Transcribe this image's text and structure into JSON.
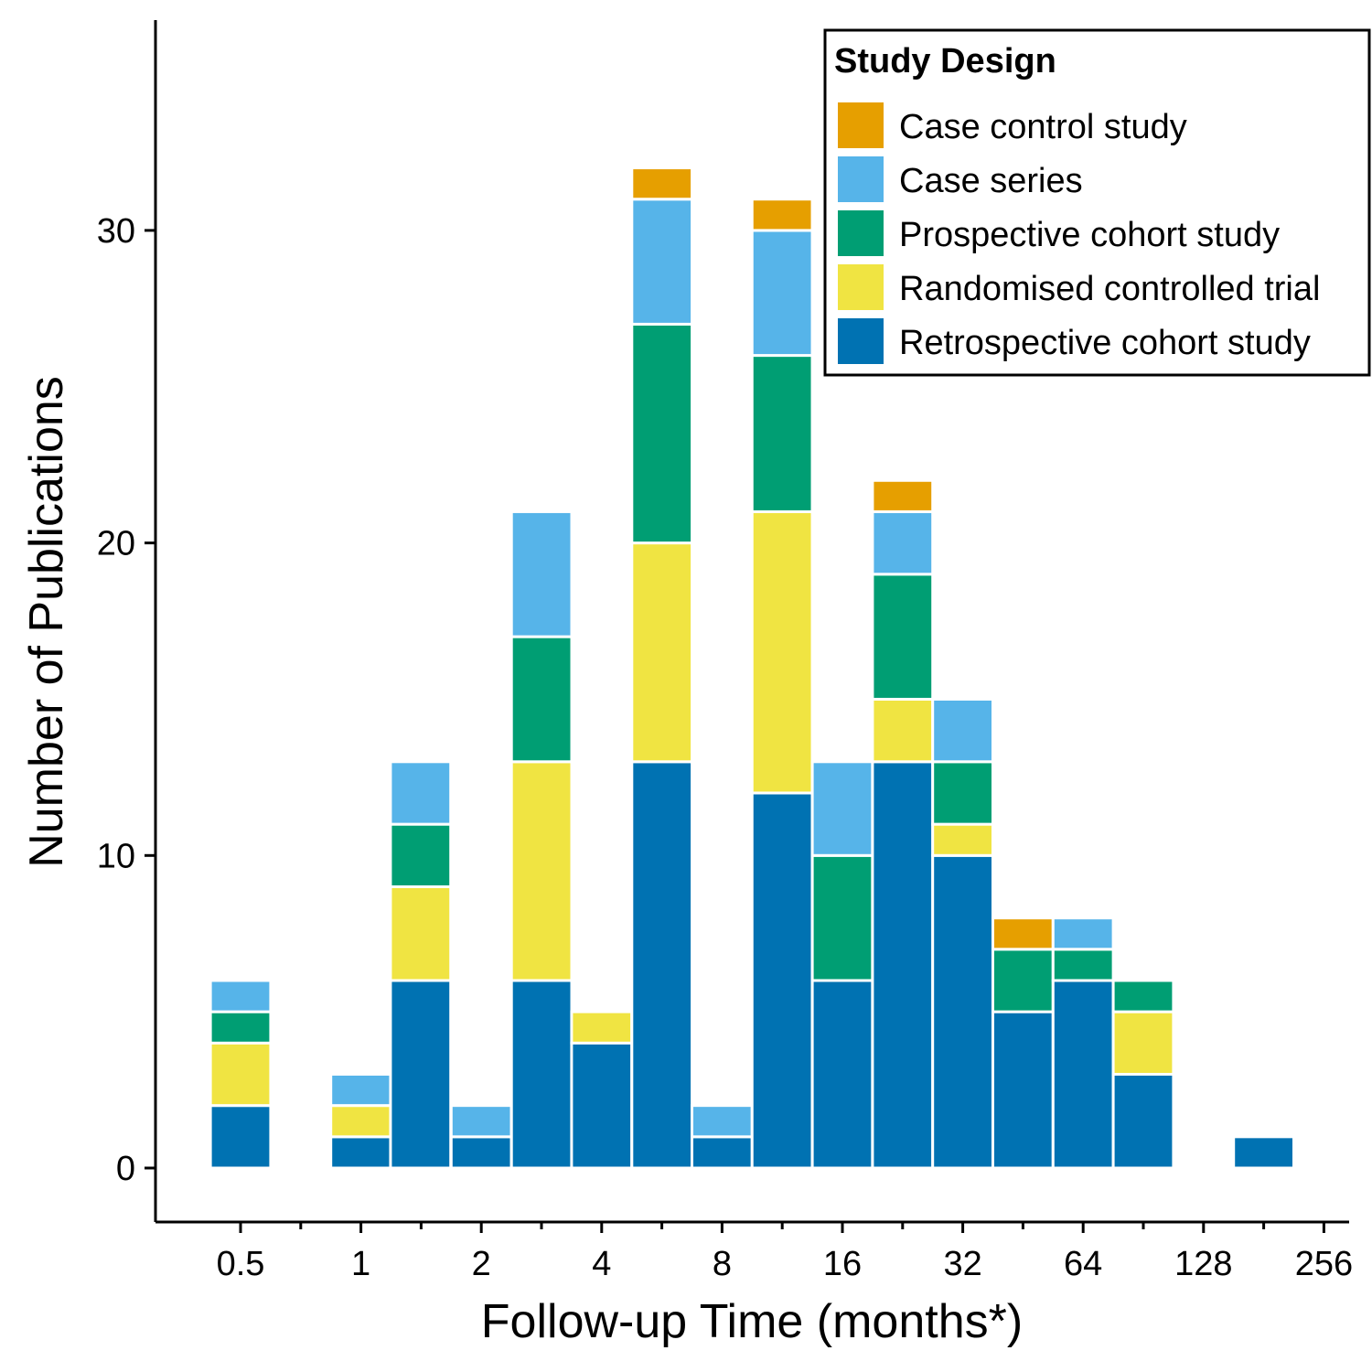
{
  "chart_data": {
    "type": "bar",
    "stacked": true,
    "x_scale": "log2",
    "xlabel": "Follow-up Time (months*)",
    "ylabel": "Number of Publications",
    "x_ticks": [
      "0.5",
      "1",
      "2",
      "4",
      "8",
      "16",
      "32",
      "64",
      "128",
      "256"
    ],
    "y_ticks": [
      "0",
      "10",
      "20",
      "30"
    ],
    "ylim": [
      -1.7,
      36.9
    ],
    "grid": false,
    "legend": {
      "title": "Study Design",
      "position": "top-right"
    },
    "bin_width_log2": 0.5,
    "bin_centers": [
      0.5,
      0.71,
      1,
      1.41,
      2,
      2.83,
      4,
      5.66,
      8,
      11.31,
      16,
      22.63,
      32,
      45.25,
      64,
      90.51,
      128,
      181.02
    ],
    "series": [
      {
        "name": "Retrospective cohort study",
        "color": "#0072B2",
        "values": [
          2,
          0,
          1,
          6,
          1,
          6,
          4,
          13,
          1,
          12,
          6,
          13,
          10,
          5,
          6,
          3,
          0,
          1
        ]
      },
      {
        "name": "Randomised controlled trial",
        "color": "#F0E442",
        "values": [
          2,
          0,
          1,
          3,
          0,
          7,
          1,
          7,
          0,
          9,
          0,
          2,
          1,
          0,
          0,
          2,
          0,
          0
        ]
      },
      {
        "name": "Prospective cohort study",
        "color": "#009E73",
        "values": [
          1,
          0,
          0,
          2,
          0,
          4,
          0,
          7,
          0,
          5,
          4,
          4,
          2,
          2,
          1,
          1,
          0,
          0
        ]
      },
      {
        "name": "Case series",
        "color": "#56B4E9",
        "values": [
          1,
          0,
          1,
          2,
          1,
          4,
          0,
          4,
          1,
          4,
          3,
          2,
          2,
          0,
          1,
          0,
          0,
          0
        ]
      },
      {
        "name": "Case control study",
        "color": "#E69F00",
        "values": [
          0,
          0,
          0,
          0,
          0,
          0,
          0,
          1,
          0,
          1,
          0,
          1,
          0,
          1,
          0,
          0,
          0,
          0
        ]
      }
    ],
    "legend_order": [
      "Case control study",
      "Case series",
      "Prospective cohort study",
      "Randomised controlled trial",
      "Retrospective cohort study"
    ]
  }
}
